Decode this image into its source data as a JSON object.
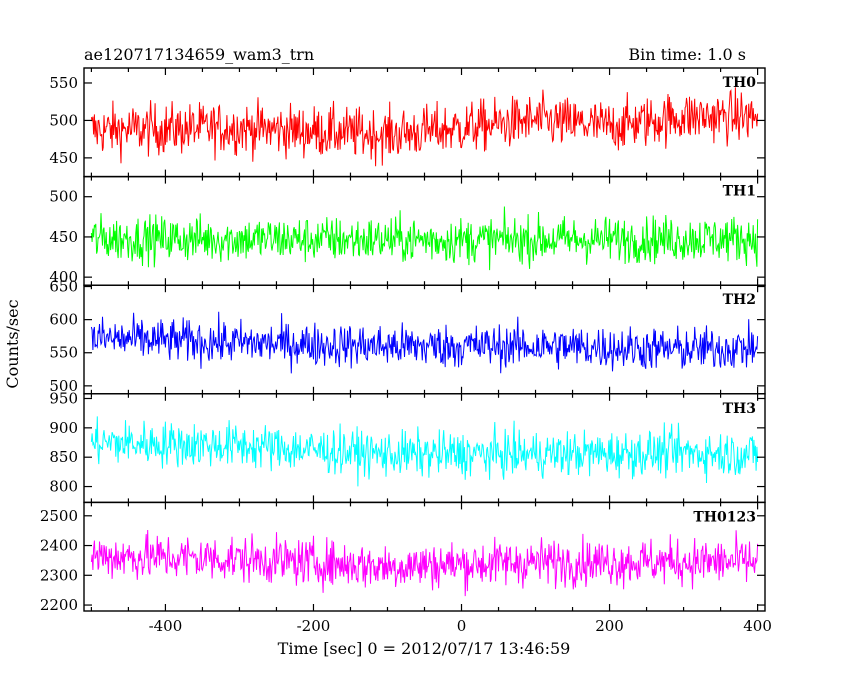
{
  "header": {
    "title": "ae120717134659_wam3_trn",
    "bin_time": "Bin time: 1.0 s"
  },
  "chart_data": {
    "type": "line",
    "title": "ae120717134659_wam3_trn",
    "subtitle": "Bin time: 1.0 s",
    "xlabel": "Time [sec] 0 = 2012/07/17 13:46:59",
    "ylabel": "Counts/sec",
    "xlim": [
      -510,
      410
    ],
    "xticks": [
      -400,
      -200,
      0,
      200,
      400
    ],
    "grid": false,
    "series": [
      {
        "name": "TH0",
        "color": "#ff0000",
        "ylim": [
          425,
          570
        ],
        "yticks": [
          450,
          500,
          550
        ],
        "x_start": -500,
        "x_end": 400,
        "mean_trend": [
          [
            -500,
            487
          ],
          [
            -300,
            490
          ],
          [
            -100,
            481
          ],
          [
            0,
            490
          ],
          [
            100,
            500
          ],
          [
            200,
            492
          ],
          [
            300,
            505
          ],
          [
            400,
            505
          ]
        ],
        "noise": 24,
        "range": [
          425,
          570
        ]
      },
      {
        "name": "TH1",
        "color": "#00ff00",
        "ylim": [
          390,
          525
        ],
        "yticks": [
          400,
          450,
          500
        ],
        "x_start": -500,
        "x_end": 400,
        "mean_trend": [
          [
            -500,
            448
          ],
          [
            -200,
            447
          ],
          [
            0,
            446
          ],
          [
            200,
            447
          ],
          [
            400,
            448
          ]
        ],
        "noise": 20,
        "range": [
          395,
          520
        ]
      },
      {
        "name": "TH2",
        "color": "#0000ff",
        "ylim": [
          488,
          652
        ],
        "yticks": [
          500,
          550,
          600,
          650
        ],
        "x_start": -500,
        "x_end": 400,
        "mean_trend": [
          [
            -500,
            572
          ],
          [
            -300,
            565
          ],
          [
            -100,
            560
          ],
          [
            100,
            560
          ],
          [
            300,
            555
          ],
          [
            400,
            558
          ]
        ],
        "noise": 23,
        "range": [
          490,
          650
        ]
      },
      {
        "name": "TH3",
        "color": "#00ffff",
        "ylim": [
          773,
          958
        ],
        "yticks": [
          800,
          850,
          900,
          950
        ],
        "x_start": -500,
        "x_end": 400,
        "mean_trend": [
          [
            -500,
            875
          ],
          [
            -300,
            870
          ],
          [
            -100,
            855
          ],
          [
            100,
            855
          ],
          [
            300,
            858
          ],
          [
            400,
            855
          ]
        ],
        "noise": 27,
        "range": [
          778,
          955
        ]
      },
      {
        "name": "TH0123",
        "color": "#ff00ff",
        "ylim": [
          2180,
          2545
        ],
        "yticks": [
          2200,
          2300,
          2400,
          2500
        ],
        "x_start": -500,
        "x_end": 400,
        "mean_trend": [
          [
            -500,
            2365
          ],
          [
            -300,
            2355
          ],
          [
            -100,
            2330
          ],
          [
            100,
            2345
          ],
          [
            300,
            2345
          ],
          [
            400,
            2345
          ]
        ],
        "noise": 55,
        "range": [
          2185,
          2540
        ]
      }
    ]
  }
}
